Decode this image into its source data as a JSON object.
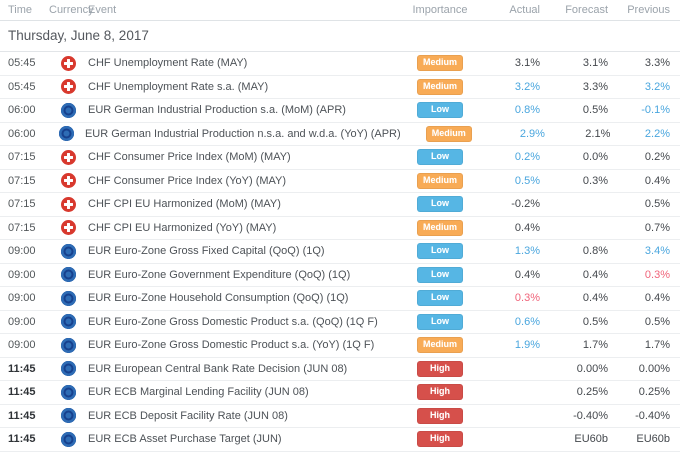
{
  "header": {
    "columns": [
      {
        "key": "time",
        "label": "Time"
      },
      {
        "key": "currency",
        "label": "Currency"
      },
      {
        "key": "event",
        "label": "Event"
      },
      {
        "key": "importance",
        "label": "Importance"
      },
      {
        "key": "actual",
        "label": "Actual"
      },
      {
        "key": "forecast",
        "label": "Forecast"
      },
      {
        "key": "previous",
        "label": "Previous"
      }
    ]
  },
  "date_heading": "Thursday, June 8, 2017",
  "colors": {
    "low": "#56b6e4",
    "medium": "#f8ab56",
    "high": "#d6504b",
    "better": "#4aa6de",
    "worse": "#f0647a",
    "neutral": "#44484d"
  },
  "currency_icons": {
    "CHF": "swiss-flag-icon",
    "EUR": "eu-flag-icon"
  },
  "rows": [
    {
      "time": "05:45",
      "time_bold": false,
      "currency": "CHF",
      "event": "CHF Unemployment Rate (MAY)",
      "importance": "Medium",
      "actual": {
        "text": "3.1%",
        "tone": "neutral"
      },
      "forecast": "3.1%",
      "previous": {
        "text": "3.3%",
        "tone": "neutral"
      }
    },
    {
      "time": "05:45",
      "time_bold": false,
      "currency": "CHF",
      "event": "CHF Unemployment Rate s.a. (MAY)",
      "importance": "Medium",
      "actual": {
        "text": "3.2%",
        "tone": "better"
      },
      "forecast": "3.3%",
      "previous": {
        "text": "3.2%",
        "tone": "better"
      }
    },
    {
      "time": "06:00",
      "time_bold": false,
      "currency": "EUR",
      "event": "EUR German Industrial Production s.a. (MoM) (APR)",
      "importance": "Low",
      "actual": {
        "text": "0.8%",
        "tone": "better"
      },
      "forecast": "0.5%",
      "previous": {
        "text": "-0.1%",
        "tone": "better"
      }
    },
    {
      "time": "06:00",
      "time_bold": false,
      "currency": "EUR",
      "event": "EUR German Industrial Production n.s.a. and w.d.a. (YoY) (APR)",
      "importance": "Medium",
      "actual": {
        "text": "2.9%",
        "tone": "better"
      },
      "forecast": "2.1%",
      "previous": {
        "text": "2.2%",
        "tone": "better"
      }
    },
    {
      "time": "07:15",
      "time_bold": false,
      "currency": "CHF",
      "event": "CHF Consumer Price Index (MoM) (MAY)",
      "importance": "Low",
      "actual": {
        "text": "0.2%",
        "tone": "better"
      },
      "forecast": "0.0%",
      "previous": {
        "text": "0.2%",
        "tone": "neutral"
      }
    },
    {
      "time": "07:15",
      "time_bold": false,
      "currency": "CHF",
      "event": "CHF Consumer Price Index (YoY) (MAY)",
      "importance": "Medium",
      "actual": {
        "text": "0.5%",
        "tone": "better"
      },
      "forecast": "0.3%",
      "previous": {
        "text": "0.4%",
        "tone": "neutral"
      }
    },
    {
      "time": "07:15",
      "time_bold": false,
      "currency": "CHF",
      "event": "CHF CPI EU Harmonized (MoM) (MAY)",
      "importance": "Low",
      "actual": {
        "text": "-0.2%",
        "tone": "neutral"
      },
      "forecast": "",
      "previous": {
        "text": "0.5%",
        "tone": "neutral"
      }
    },
    {
      "time": "07:15",
      "time_bold": false,
      "currency": "CHF",
      "event": "CHF CPI EU Harmonized (YoY) (MAY)",
      "importance": "Medium",
      "actual": {
        "text": "0.4%",
        "tone": "neutral"
      },
      "forecast": "",
      "previous": {
        "text": "0.7%",
        "tone": "neutral"
      }
    },
    {
      "time": "09:00",
      "time_bold": false,
      "currency": "EUR",
      "event": "EUR Euro-Zone Gross Fixed Capital (QoQ) (1Q)",
      "importance": "Low",
      "actual": {
        "text": "1.3%",
        "tone": "better"
      },
      "forecast": "0.8%",
      "previous": {
        "text": "3.4%",
        "tone": "better"
      }
    },
    {
      "time": "09:00",
      "time_bold": false,
      "currency": "EUR",
      "event": "EUR Euro-Zone Government Expenditure (QoQ) (1Q)",
      "importance": "Low",
      "actual": {
        "text": "0.4%",
        "tone": "neutral"
      },
      "forecast": "0.4%",
      "previous": {
        "text": "0.3%",
        "tone": "worse"
      }
    },
    {
      "time": "09:00",
      "time_bold": false,
      "currency": "EUR",
      "event": "EUR Euro-Zone Household Consumption (QoQ) (1Q)",
      "importance": "Low",
      "actual": {
        "text": "0.3%",
        "tone": "worse"
      },
      "forecast": "0.4%",
      "previous": {
        "text": "0.4%",
        "tone": "neutral"
      }
    },
    {
      "time": "09:00",
      "time_bold": false,
      "currency": "EUR",
      "event": "EUR Euro-Zone Gross Domestic Product s.a. (QoQ) (1Q F)",
      "importance": "Low",
      "actual": {
        "text": "0.6%",
        "tone": "better"
      },
      "forecast": "0.5%",
      "previous": {
        "text": "0.5%",
        "tone": "neutral"
      }
    },
    {
      "time": "09:00",
      "time_bold": false,
      "currency": "EUR",
      "event": "EUR Euro-Zone Gross Domestic Product s.a. (YoY) (1Q F)",
      "importance": "Medium",
      "actual": {
        "text": "1.9%",
        "tone": "better"
      },
      "forecast": "1.7%",
      "previous": {
        "text": "1.7%",
        "tone": "neutral"
      }
    },
    {
      "time": "11:45",
      "time_bold": true,
      "currency": "EUR",
      "event": "EUR European Central Bank Rate Decision (JUN 08)",
      "importance": "High",
      "actual": {
        "text": "",
        "tone": "neutral"
      },
      "forecast": "0.00%",
      "previous": {
        "text": "0.00%",
        "tone": "neutral"
      }
    },
    {
      "time": "11:45",
      "time_bold": true,
      "currency": "EUR",
      "event": "EUR ECB Marginal Lending Facility (JUN 08)",
      "importance": "High",
      "actual": {
        "text": "",
        "tone": "neutral"
      },
      "forecast": "0.25%",
      "previous": {
        "text": "0.25%",
        "tone": "neutral"
      }
    },
    {
      "time": "11:45",
      "time_bold": true,
      "currency": "EUR",
      "event": "EUR ECB Deposit Facility Rate (JUN 08)",
      "importance": "High",
      "actual": {
        "text": "",
        "tone": "neutral"
      },
      "forecast": "-0.40%",
      "previous": {
        "text": "-0.40%",
        "tone": "neutral"
      }
    },
    {
      "time": "11:45",
      "time_bold": true,
      "currency": "EUR",
      "event": "EUR ECB Asset Purchase Target (JUN)",
      "importance": "High",
      "actual": {
        "text": "",
        "tone": "neutral"
      },
      "forecast": "EU60b",
      "previous": {
        "text": "EU60b",
        "tone": "neutral"
      }
    }
  ]
}
